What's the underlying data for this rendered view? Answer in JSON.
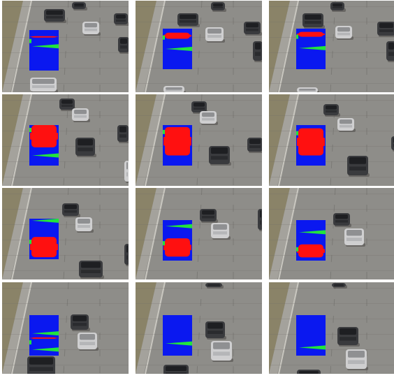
{
  "figure": {
    "description_free": true,
    "rows": 4,
    "cols": 3,
    "colors": {
      "road": "#8e8d89",
      "road_dark": "#6e6d69",
      "shoulder": "#a4a29c",
      "grass": "#8a8368",
      "lane_line": "#c9c7c0",
      "box": "#0a18f0",
      "vehicle_mask": "#ff1010",
      "edge_mask": "#22e43c",
      "car_body": "#3a3b3e",
      "car_light": "#cfcfd0",
      "shadow": "#4a4946"
    },
    "frames": [
      {
        "fill": [
          0.15,
          0.05
        ],
        "green": [
          0.4
        ],
        "vehicle": "dark-car"
      },
      {
        "fill": [
          0.1,
          0.25
        ],
        "green": [
          0.5
        ],
        "vehicle": "dark-car"
      },
      {
        "fill": [
          0.08,
          0.2
        ],
        "green": [
          0.48
        ],
        "vehicle": "dark-car"
      },
      {
        "fill": [
          0.0,
          0.55
        ],
        "green": [
          0.75
        ],
        "vehicle": "dark-car"
      },
      {
        "fill": [
          0.05,
          0.75
        ],
        "green": [],
        "vehicle": "dark-car"
      },
      {
        "fill": [
          0.08,
          0.75
        ],
        "green": [],
        "vehicle": "dark-car"
      },
      {
        "fill": [
          0.45,
          0.95
        ],
        "green": [
          0.05
        ],
        "vehicle": "dark-car"
      },
      {
        "fill": [
          0.45,
          0.9
        ],
        "green": [
          0.15
        ],
        "vehicle": "grey-car"
      },
      {
        "fill": [
          0.6,
          0.92
        ],
        "green": [
          0.3
        ],
        "vehicle": "grey-car"
      },
      {
        "fill": [
          0.55,
          0.58
        ],
        "green": [
          0.45,
          0.85
        ],
        "vehicle": "none"
      },
      {
        "fill": [],
        "green": [
          0.7
        ],
        "vehicle": "none"
      },
      {
        "fill": [],
        "green": [
          0.8
        ],
        "vehicle": "none"
      }
    ]
  }
}
